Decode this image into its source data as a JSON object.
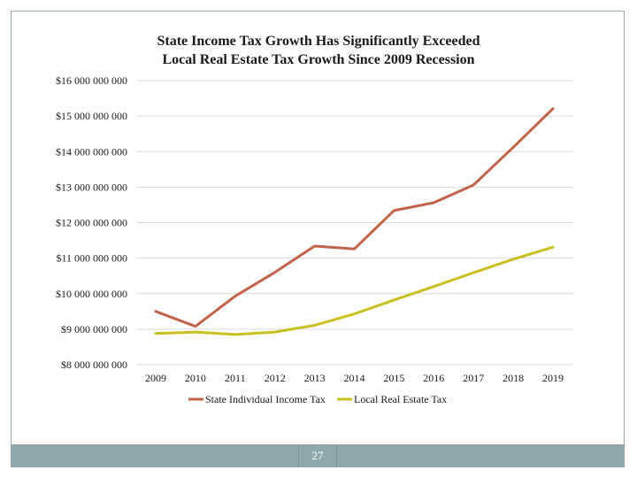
{
  "chart_data": {
    "type": "line",
    "title_line1": "State Income Tax Growth Has Significantly Exceeded",
    "title_line2": "Local Real Estate Tax Growth Since 2009 Recession",
    "x": [
      "2009",
      "2010",
      "2011",
      "2012",
      "2013",
      "2014",
      "2015",
      "2016",
      "2017",
      "2018",
      "2019"
    ],
    "y_ticks": [
      {
        "value": 16000000,
        "label": "$16 000 000 000"
      },
      {
        "value": 15000000,
        "label": "$15 000 000 000"
      },
      {
        "value": 14000000,
        "label": "$14 000 000 000"
      },
      {
        "value": 13000000,
        "label": "$13 000 000 000"
      },
      {
        "value": 12000000,
        "label": "$12 000 000 000"
      },
      {
        "value": 11000000,
        "label": "$11 000 000 000"
      },
      {
        "value": 10000000,
        "label": "$10 000 000 000"
      },
      {
        "value": 9000000,
        "label": "$9 000 000 000"
      },
      {
        "value": 8000000,
        "label": "$8 000 000 000"
      }
    ],
    "ylim": [
      8000000,
      16000000
    ],
    "grid": true,
    "legend_position": "bottom",
    "series": [
      {
        "name": "State Individual Income Tax",
        "color": "#c0634a",
        "values": [
          9500000,
          9080000,
          9930000,
          10600000,
          11340000,
          11260000,
          12340000,
          12560000,
          13060000,
          14120000,
          15210000
        ]
      },
      {
        "name": "Local Real Estate Tax",
        "color": "#c8c020",
        "values": [
          8880000,
          8920000,
          8850000,
          8920000,
          9110000,
          9430000,
          9820000,
          10200000,
          10590000,
          10970000,
          11310000
        ]
      }
    ]
  },
  "footer": {
    "page_number": "27"
  }
}
